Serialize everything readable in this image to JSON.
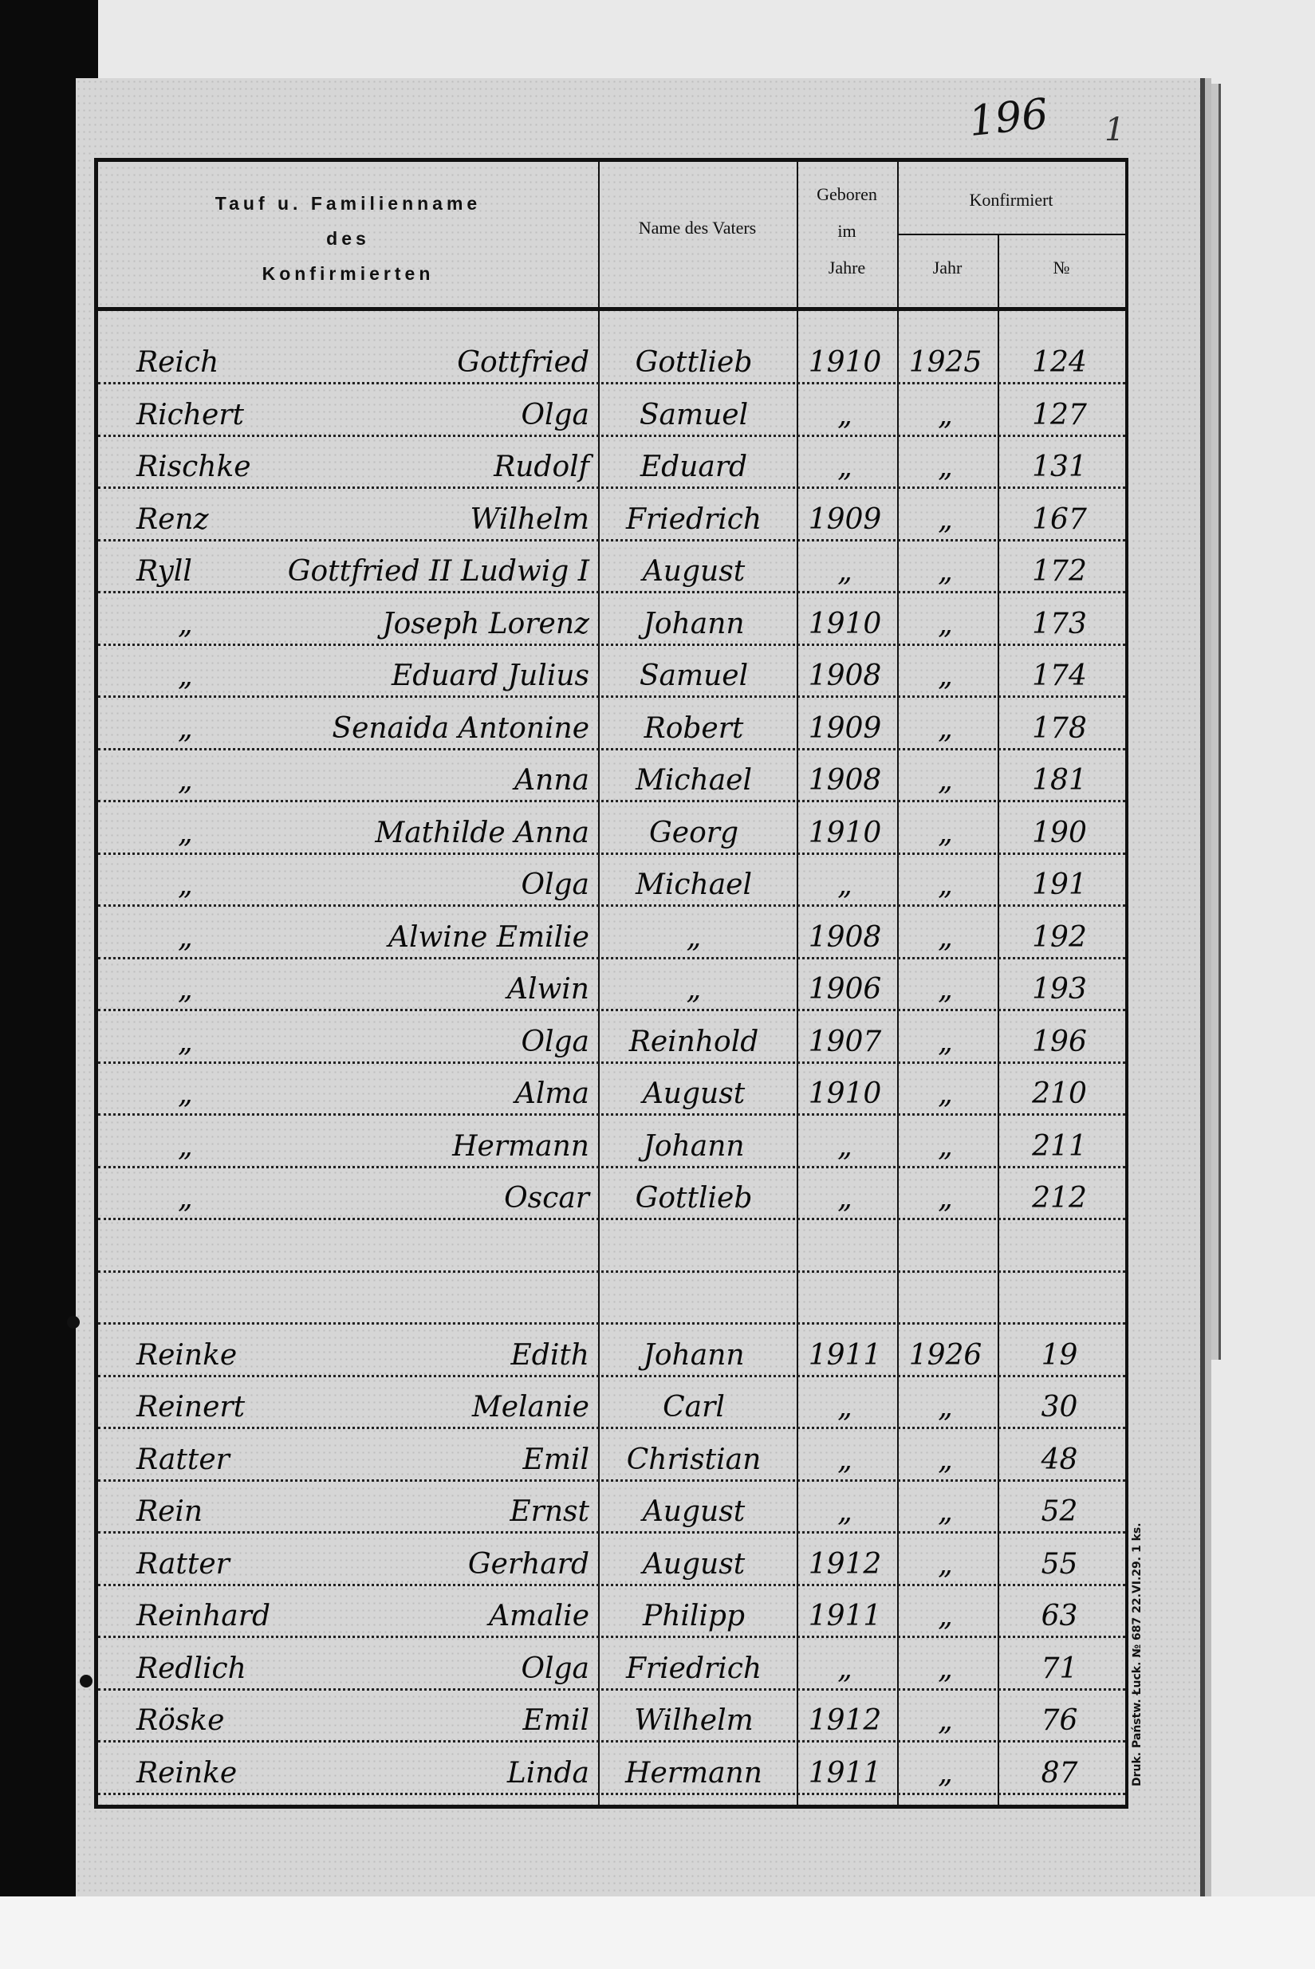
{
  "page_number": "196",
  "page_mark": "1",
  "header": {
    "col_name": [
      "Tauf u. Familienname",
      "des",
      "Konfirmierten"
    ],
    "col_father": "Name des Vaters",
    "col_born": [
      "Geboren",
      "im",
      "Jahre"
    ],
    "col_confirmed": "Konfirmiert",
    "col_confirmed_year": "Jahr",
    "col_confirmed_no": "№"
  },
  "rows": [
    {
      "surname": "Reich",
      "given": "Gottfried",
      "father": "Gottlieb",
      "born": "1910",
      "year": "1925",
      "no": "124"
    },
    {
      "surname": "Richert",
      "given": "Olga",
      "father": "Samuel",
      "born": "„",
      "year": "„",
      "no": "127"
    },
    {
      "surname": "Rischke",
      "given": "Rudolf",
      "father": "Eduard",
      "born": "„",
      "year": "„",
      "no": "131"
    },
    {
      "surname": "Renz",
      "given": "Wilhelm",
      "father": "Friedrich",
      "born": "1909",
      "year": "„",
      "no": "167"
    },
    {
      "surname": "Ryll",
      "given": "Gottfried II Ludwig I",
      "father": "August",
      "born": "„",
      "year": "„",
      "no": "172"
    },
    {
      "surname": "„",
      "given": "Joseph Lorenz",
      "father": "Johann",
      "born": "1910",
      "year": "„",
      "no": "173"
    },
    {
      "surname": "„",
      "given": "Eduard Julius",
      "father": "Samuel",
      "born": "1908",
      "year": "„",
      "no": "174"
    },
    {
      "surname": "„",
      "given": "Senaida Antonine",
      "father": "Robert",
      "born": "1909",
      "year": "„",
      "no": "178"
    },
    {
      "surname": "„",
      "given": "Anna",
      "father": "Michael",
      "born": "1908",
      "year": "„",
      "no": "181"
    },
    {
      "surname": "„",
      "given": "Mathilde Anna",
      "father": "Georg",
      "born": "1910",
      "year": "„",
      "no": "190"
    },
    {
      "surname": "„",
      "given": "Olga",
      "father": "Michael",
      "born": "„",
      "year": "„",
      "no": "191"
    },
    {
      "surname": "„",
      "given": "Alwine Emilie",
      "father": "„",
      "born": "1908",
      "year": "„",
      "no": "192"
    },
    {
      "surname": "„",
      "given": "Alwin",
      "father": "„",
      "born": "1906",
      "year": "„",
      "no": "193"
    },
    {
      "surname": "„",
      "given": "Olga",
      "father": "Reinhold",
      "born": "1907",
      "year": "„",
      "no": "196"
    },
    {
      "surname": "„",
      "given": "Alma",
      "father": "August",
      "born": "1910",
      "year": "„",
      "no": "210"
    },
    {
      "surname": "„",
      "given": "Hermann",
      "father": "Johann",
      "born": "„",
      "year": "„",
      "no": "211"
    },
    {
      "surname": "„",
      "given": "Oscar",
      "father": "Gottlieb",
      "born": "„",
      "year": "„",
      "no": "212"
    },
    {
      "surname": "",
      "given": "",
      "father": "",
      "born": "",
      "year": "",
      "no": ""
    },
    {
      "surname": "",
      "given": "",
      "father": "",
      "born": "",
      "year": "",
      "no": ""
    },
    {
      "surname": "Reinke",
      "given": "Edith",
      "father": "Johann",
      "born": "1911",
      "year": "1926",
      "no": "19"
    },
    {
      "surname": "Reinert",
      "given": "Melanie",
      "father": "Carl",
      "born": "„",
      "year": "„",
      "no": "30"
    },
    {
      "surname": "Ratter",
      "given": "Emil",
      "father": "Christian",
      "born": "„",
      "year": "„",
      "no": "48"
    },
    {
      "surname": "Rein",
      "given": "Ernst",
      "father": "August",
      "born": "„",
      "year": "„",
      "no": "52"
    },
    {
      "surname": "Ratter",
      "given": "Gerhard",
      "father": "August",
      "born": "1912",
      "year": "„",
      "no": "55"
    },
    {
      "surname": "Reinhard",
      "given": "Amalie",
      "father": "Philipp",
      "born": "1911",
      "year": "„",
      "no": "63"
    },
    {
      "surname": "Redlich",
      "given": "Olga",
      "father": "Friedrich",
      "born": "„",
      "year": "„",
      "no": "71"
    },
    {
      "surname": "Röske",
      "given": "Emil",
      "father": "Wilhelm",
      "born": "1912",
      "year": "„",
      "no": "76"
    },
    {
      "surname": "Reinke",
      "given": "Linda",
      "father": "Hermann",
      "born": "1911",
      "year": "„",
      "no": "87"
    }
  ],
  "printer_imprint": "Druk. Państw. Łuck. № 687 22.VI.29. 1 ks."
}
